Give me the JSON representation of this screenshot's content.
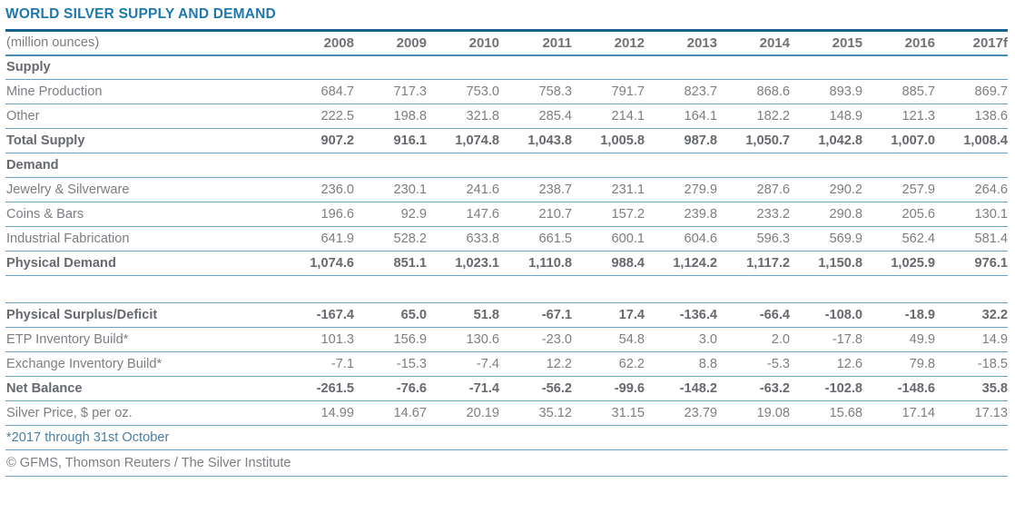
{
  "title": "WORLD SILVER SUPPLY AND DEMAND",
  "unit_label": "(million ounces)",
  "years": [
    "2008",
    "2009",
    "2010",
    "2011",
    "2012",
    "2013",
    "2014",
    "2015",
    "2016",
    "2017f"
  ],
  "table": {
    "rows": [
      {
        "label": "Supply",
        "bold": true,
        "section": true,
        "values": []
      },
      {
        "label": "Mine Production",
        "bold": false,
        "values": [
          "684.7",
          "717.3",
          "753.0",
          "758.3",
          "791.7",
          "823.7",
          "868.6",
          "893.9",
          "885.7",
          "869.7"
        ]
      },
      {
        "label": "Other",
        "bold": false,
        "values": [
          "222.5",
          "198.8",
          "321.8",
          "285.4",
          "214.1",
          "164.1",
          "182.2",
          "148.9",
          "121.3",
          "138.6"
        ]
      },
      {
        "label": "Total Supply",
        "bold": true,
        "values": [
          "907.2",
          "916.1",
          "1,074.8",
          "1,043.8",
          "1,005.8",
          "987.8",
          "1,050.7",
          "1,042.8",
          "1,007.0",
          "1,008.4"
        ]
      },
      {
        "label": "Demand",
        "bold": true,
        "section": true,
        "values": []
      },
      {
        "label": "Jewelry & Silverware",
        "bold": false,
        "values": [
          "236.0",
          "230.1",
          "241.6",
          "238.7",
          "231.1",
          "279.9",
          "287.6",
          "290.2",
          "257.9",
          "264.6"
        ]
      },
      {
        "label": "Coins & Bars",
        "bold": false,
        "values": [
          "196.6",
          "92.9",
          "147.6",
          "210.7",
          "157.2",
          "239.8",
          "233.2",
          "290.8",
          "205.6",
          "130.1"
        ]
      },
      {
        "label": "Industrial Fabrication",
        "bold": false,
        "values": [
          "641.9",
          "528.2",
          "633.8",
          "661.5",
          "600.1",
          "604.6",
          "596.3",
          "569.9",
          "562.4",
          "581.4"
        ]
      },
      {
        "label": "Physical Demand",
        "bold": true,
        "values": [
          "1,074.6",
          "851.1",
          "1,023.1",
          "1,110.8",
          "988.4",
          "1,124.2",
          "1,117.2",
          "1,150.8",
          "1,025.9",
          "976.1"
        ]
      },
      {
        "label": "",
        "blank": true,
        "values": []
      },
      {
        "label": "Physical Surplus/Deficit",
        "bold": true,
        "values": [
          "-167.4",
          "65.0",
          "51.8",
          "-67.1",
          "17.4",
          "-136.4",
          "-66.4",
          "-108.0",
          "-18.9",
          "32.2"
        ]
      },
      {
        "label": "ETP Inventory Build*",
        "bold": false,
        "values": [
          "101.3",
          "156.9",
          "130.6",
          "-23.0",
          "54.8",
          "3.0",
          "2.0",
          "-17.8",
          "49.9",
          "14.9"
        ]
      },
      {
        "label": "Exchange Inventory Build*",
        "bold": false,
        "values": [
          "-7.1",
          "-15.3",
          "-7.4",
          "12.2",
          "62.2",
          "8.8",
          "-5.3",
          "12.6",
          "79.8",
          "-18.5"
        ]
      },
      {
        "label": "Net Balance",
        "bold": true,
        "values": [
          "-261.5",
          "-76.6",
          "-71.4",
          "-56.2",
          "-99.6",
          "-148.2",
          "-63.2",
          "-102.8",
          "-148.6",
          "35.8"
        ]
      },
      {
        "label": "Silver Price, $ per oz.",
        "bold": false,
        "values": [
          "14.99",
          "14.67",
          "20.19",
          "35.12",
          "31.15",
          "23.79",
          "19.08",
          "15.68",
          "17.14",
          "17.13"
        ]
      }
    ]
  },
  "footnote": "*2017 through 31st October",
  "copyright": "© GFMS, Thomson Reuters / The Silver Institute",
  "colors": {
    "title_blue": "#1f78ad",
    "rule_thick": "#16648f",
    "rule_thin": "#6aa2c3",
    "body_text": "#7b7e82",
    "bold_text": "#66696d",
    "footnote_text": "#4b7fa0"
  }
}
